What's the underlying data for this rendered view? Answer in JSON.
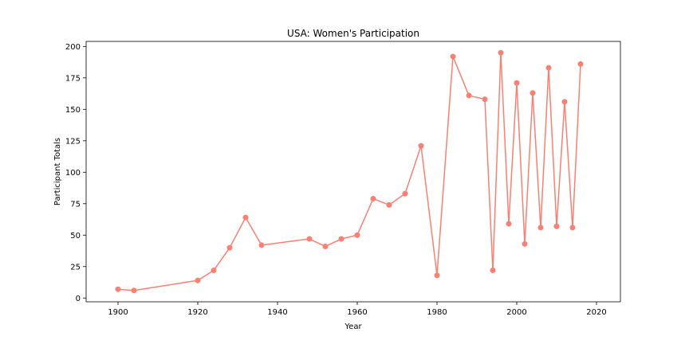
{
  "chart_data": {
    "type": "line",
    "title": "USA: Women's Participation",
    "xlabel": "Year",
    "ylabel": "Participant Totals",
    "xlim": [
      1892,
      2026
    ],
    "ylim": [
      -3,
      204
    ],
    "xticks": [
      1900,
      1920,
      1940,
      1960,
      1980,
      2000,
      2020
    ],
    "yticks": [
      0,
      25,
      50,
      75,
      100,
      125,
      150,
      175,
      200
    ],
    "grid": false,
    "legend": "none",
    "colors": {
      "series": "#fa8072",
      "axis": "#000000"
    },
    "series": [
      {
        "x": [
          1900,
          1904,
          1920,
          1924,
          1928,
          1932,
          1936,
          1948,
          1952,
          1956,
          1960,
          1964,
          1968,
          1972,
          1976,
          1980,
          1984,
          1988,
          1992,
          1994,
          1996,
          1998,
          2000,
          2002,
          2004,
          2006,
          2008,
          2010,
          2012,
          2014,
          2016
        ],
        "values": [
          7,
          6,
          14,
          22,
          40,
          64,
          42,
          47,
          41,
          47,
          50,
          79,
          74,
          83,
          121,
          18,
          192,
          161,
          158,
          22,
          195,
          59,
          171,
          43,
          163,
          56,
          183,
          57,
          156,
          56,
          186
        ]
      }
    ]
  }
}
